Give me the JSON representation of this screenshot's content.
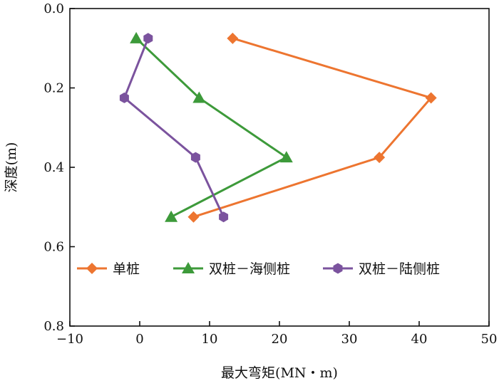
{
  "chart_data": {
    "type": "line",
    "title": "",
    "xlabel": "最大弯矩(MN・m)",
    "ylabel": "深度(m)",
    "xlim": [
      -10,
      50
    ],
    "ylim": [
      0.0,
      0.8
    ],
    "y_inverted": true,
    "xticks": [
      "−10",
      "0",
      "10",
      "20",
      "30",
      "40",
      "50"
    ],
    "xtick_values": [
      -10,
      0,
      10,
      20,
      30,
      40,
      50
    ],
    "yticks": [
      "0.0",
      "0.2",
      "0.4",
      "0.6",
      "0.8"
    ],
    "ytick_values": [
      0.0,
      0.2,
      0.4,
      0.6,
      0.8
    ],
    "grid": false,
    "legend_position": "lower-center-inside",
    "series": [
      {
        "name": "单桩",
        "color": "#ED7530",
        "marker": "diamond",
        "x": [
          13.3,
          41.7,
          34.3,
          7.7
        ],
        "y": [
          0.075,
          0.225,
          0.375,
          0.525
        ]
      },
      {
        "name": "双桩－海侧桩",
        "color": "#3D9A3A",
        "marker": "triangle",
        "x": [
          -0.5,
          8.5,
          21.0,
          4.5
        ],
        "y": [
          0.075,
          0.225,
          0.375,
          0.525
        ]
      },
      {
        "name": "双桩－陆侧桩",
        "color": "#7B539E",
        "marker": "hexagon",
        "x": [
          1.2,
          -2.2,
          8.0,
          12.0
        ],
        "y": [
          0.075,
          0.225,
          0.375,
          0.525
        ]
      }
    ]
  }
}
